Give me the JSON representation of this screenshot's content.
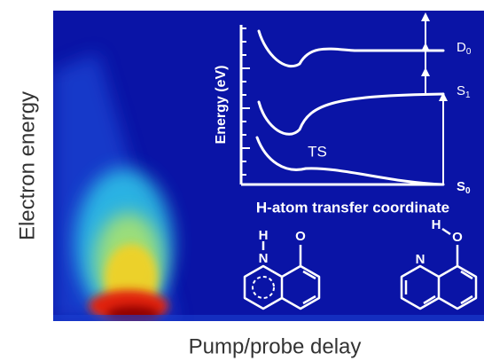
{
  "figure": {
    "y_axis_label": "Electron energy",
    "x_axis_label": "Pump/probe delay",
    "inset": {
      "axis_label": "Energy (eV)",
      "coordinate_label": "H-atom transfer coordinate",
      "transition_state": "TS",
      "states": [
        {
          "name": "D",
          "sub": "0"
        },
        {
          "name": "S",
          "sub": "1"
        },
        {
          "name": "S",
          "sub": "0"
        }
      ]
    },
    "molecules": [
      {
        "atoms": [
          "H",
          "N",
          "O"
        ]
      },
      {
        "atoms": [
          "H",
          "O",
          "N"
        ]
      }
    ]
  }
}
